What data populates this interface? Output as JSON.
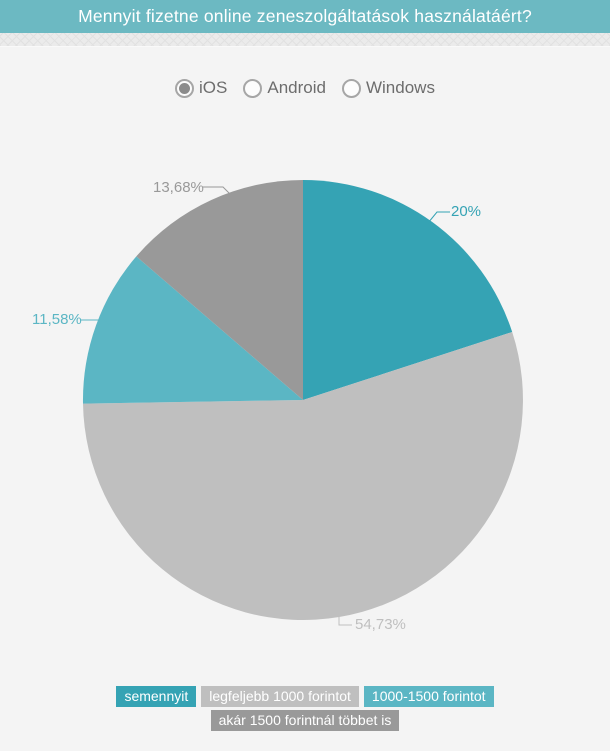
{
  "header": {
    "title": "Mennyit fizetne online zeneszolgáltatások használatáért?"
  },
  "platform_selector": {
    "options": [
      {
        "label": "iOS",
        "selected": true
      },
      {
        "label": "Android",
        "selected": false
      },
      {
        "label": "Windows",
        "selected": false
      }
    ]
  },
  "chart_data": {
    "type": "pie",
    "title": "Mennyit fizetne online zeneszolgáltatások használatáért?",
    "unit": "%",
    "direction": "clockwise",
    "start_angle_deg": 0,
    "legend_position": "bottom",
    "slices": [
      {
        "label": "semennyit",
        "value": 20,
        "display": "20%",
        "color": "#35a3b4"
      },
      {
        "label": "legfeljebb 1000 forintot",
        "value": 54.73,
        "display": "54,73%",
        "color": "#bfbfbf"
      },
      {
        "label": "1000-1500 forintot",
        "value": 11.58,
        "display": "11,58%",
        "color": "#5bb6c4"
      },
      {
        "label": "akár 1500 forintnál többet is",
        "value": 13.68,
        "display": "13,68%",
        "color": "#999999"
      }
    ]
  },
  "colors": {
    "header_bg": "#6cb9c2",
    "header_text": "#ffffff",
    "page_bg": "#f4f4f4",
    "radio_text": "#6d6d6d"
  }
}
